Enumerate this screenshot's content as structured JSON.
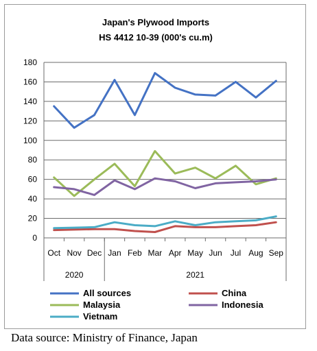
{
  "chart_data": {
    "type": "line",
    "title": "Japan's Plywood Imports",
    "subtitle": "HS 4412 10-39  (000's cu.m)",
    "categories": [
      "Oct",
      "Nov",
      "Dec",
      "Jan",
      "Feb",
      "Mar",
      "Apr",
      "May",
      "Jun",
      "Jul",
      "Aug",
      "Sep"
    ],
    "year_groups": [
      {
        "label": "2020",
        "count": 3
      },
      {
        "label": "2021",
        "count": 9
      }
    ],
    "ylim": [
      0,
      180
    ],
    "yticks": [
      0,
      20,
      40,
      60,
      80,
      100,
      120,
      140,
      160,
      180
    ],
    "grid": true,
    "legend_position": "bottom",
    "series": [
      {
        "name": "All sources",
        "color": "#4472C4",
        "values": [
          135,
          113,
          126,
          162,
          126,
          169,
          154,
          147,
          146,
          160,
          144,
          161
        ]
      },
      {
        "name": "China",
        "color": "#C0504D",
        "values": [
          8,
          8.5,
          9,
          9,
          7,
          6,
          12,
          11,
          11,
          12,
          13,
          16
        ]
      },
      {
        "name": "Malaysia",
        "color": "#9BBB59",
        "values": [
          62,
          43,
          60,
          76,
          53,
          89,
          66,
          72,
          61,
          74,
          55,
          61
        ]
      },
      {
        "name": "Indonesia",
        "color": "#8064A2",
        "values": [
          52,
          50,
          44,
          59,
          50,
          61,
          58,
          51,
          56,
          57,
          58,
          60
        ]
      },
      {
        "name": "Vietnam",
        "color": "#4BACC6",
        "values": [
          10,
          10.5,
          11,
          16,
          13,
          12,
          17,
          13,
          16,
          17,
          18,
          22
        ]
      }
    ]
  },
  "source_note": "Data source: Ministry of Finance, Japan"
}
